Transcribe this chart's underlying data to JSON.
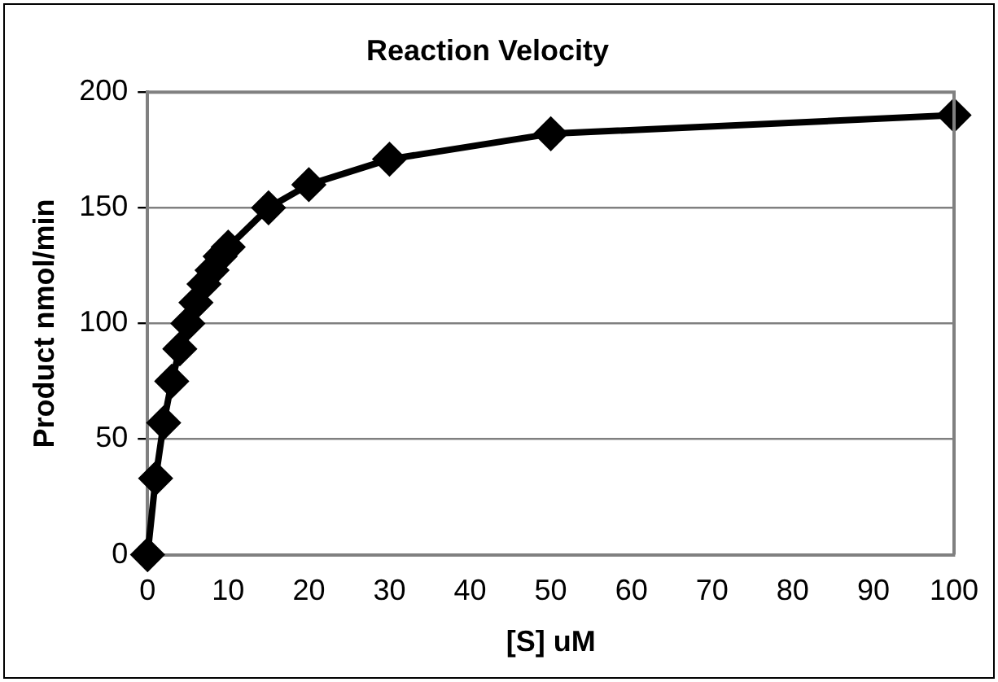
{
  "chart_data": {
    "type": "line",
    "title": "Reaction Velocity",
    "xlabel": "[S] uM",
    "ylabel": "Product nmol/min",
    "x": [
      0,
      1,
      2,
      3,
      4,
      5,
      6,
      7,
      8,
      9,
      10,
      15,
      20,
      30,
      50,
      100
    ],
    "series": [
      {
        "color": "#000000",
        "values": [
          0,
          33,
          57,
          75,
          89,
          100,
          109,
          117,
          123,
          129,
          133,
          150,
          160,
          171,
          182,
          190
        ]
      }
    ],
    "xlim": [
      0,
      100
    ],
    "xticks": [
      0,
      10,
      20,
      30,
      40,
      50,
      60,
      70,
      80,
      90,
      100
    ],
    "ylim": [
      0,
      200
    ],
    "yticks": [
      0,
      50,
      100,
      150,
      200
    ],
    "grid": "y",
    "legend": false,
    "marker": "diamond",
    "line_style": "solid"
  }
}
